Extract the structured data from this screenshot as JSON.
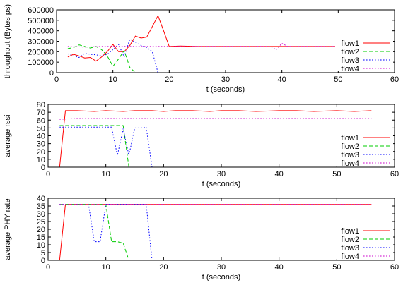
{
  "chart_data": [
    {
      "type": "line",
      "xlabel": "t (seconds)",
      "ylabel": "throughput (Bytes ps)",
      "xlim": [
        0,
        60
      ],
      "ylim": [
        0,
        600000
      ],
      "xticks": [
        0,
        10,
        20,
        30,
        40,
        50,
        60
      ],
      "yticks": [
        0,
        100000,
        200000,
        300000,
        400000,
        500000,
        600000
      ],
      "grid": false,
      "legend_position": "bottom-right",
      "series": [
        {
          "name": "flow1",
          "color": "#ff0000",
          "dash": "solid",
          "points": [
            [
              2,
              150000
            ],
            [
              3,
              175000
            ],
            [
              4,
              160000
            ],
            [
              5,
              140000
            ],
            [
              6,
              145000
            ],
            [
              7,
              110000
            ],
            [
              8,
              150000
            ],
            [
              9,
              200000
            ],
            [
              10,
              270000
            ],
            [
              11,
              200000
            ],
            [
              12,
              200000
            ],
            [
              13,
              260000
            ],
            [
              14,
              350000
            ],
            [
              15,
              330000
            ],
            [
              16,
              340000
            ],
            [
              17,
              440000
            ],
            [
              18,
              545000
            ],
            [
              19,
              400000
            ],
            [
              20,
              250000
            ],
            [
              22,
              255000
            ],
            [
              25,
              250000
            ],
            [
              30,
              250000
            ],
            [
              35,
              250000
            ],
            [
              40,
              250000
            ],
            [
              45,
              250000
            ],
            [
              50,
              250000
            ],
            [
              54,
              250000
            ],
            [
              55,
              255000
            ],
            [
              56,
              250000
            ]
          ]
        },
        {
          "name": "flow2",
          "color": "#00cc00",
          "dash": "dashed",
          "points": [
            [
              2,
              230000
            ],
            [
              3,
              240000
            ],
            [
              4,
              265000
            ],
            [
              5,
              250000
            ],
            [
              6,
              235000
            ],
            [
              7,
              250000
            ],
            [
              8,
              220000
            ],
            [
              9,
              160000
            ],
            [
              10,
              60000
            ],
            [
              11,
              130000
            ],
            [
              12,
              210000
            ],
            [
              13,
              50000
            ],
            [
              14,
              0
            ]
          ]
        },
        {
          "name": "flow3",
          "color": "#0000ff",
          "dash": "dotted",
          "points": [
            [
              2,
              180000
            ],
            [
              3,
              160000
            ],
            [
              4,
              145000
            ],
            [
              5,
              185000
            ],
            [
              6,
              175000
            ],
            [
              7,
              170000
            ],
            [
              8,
              160000
            ],
            [
              9,
              175000
            ],
            [
              10,
              220000
            ],
            [
              11,
              270000
            ],
            [
              12,
              150000
            ],
            [
              13,
              320000
            ],
            [
              14,
              290000
            ],
            [
              15,
              260000
            ],
            [
              16,
              240000
            ],
            [
              17,
              200000
            ],
            [
              18,
              0
            ]
          ]
        },
        {
          "name": "flow4",
          "color": "#cc00cc",
          "dash": "dotted",
          "points": [
            [
              2,
              250000
            ],
            [
              5,
              245000
            ],
            [
              8,
              250000
            ],
            [
              10,
              250000
            ],
            [
              12,
              250000
            ],
            [
              15,
              250000
            ],
            [
              20,
              250000
            ],
            [
              25,
              250000
            ],
            [
              30,
              250000
            ],
            [
              35,
              250000
            ],
            [
              38,
              250000
            ],
            [
              39,
              220000
            ],
            [
              40,
              280000
            ],
            [
              41,
              250000
            ],
            [
              45,
              250000
            ],
            [
              50,
              250000
            ],
            [
              53,
              250000
            ],
            [
              56,
              245000
            ]
          ]
        }
      ]
    },
    {
      "type": "line",
      "xlabel": "t (seconds)",
      "ylabel": "average rssi",
      "xlim": [
        0,
        60
      ],
      "ylim": [
        0,
        80
      ],
      "xticks": [
        0,
        10,
        20,
        30,
        40,
        50,
        60
      ],
      "yticks": [
        0,
        10,
        20,
        30,
        40,
        50,
        60,
        70,
        80
      ],
      "grid": false,
      "legend_position": "bottom-right",
      "series": [
        {
          "name": "flow1",
          "color": "#ff0000",
          "dash": "solid",
          "points": [
            [
              2,
              0
            ],
            [
              3,
              72
            ],
            [
              5,
              72
            ],
            [
              8,
              71
            ],
            [
              10,
              72
            ],
            [
              13,
              71
            ],
            [
              15,
              72
            ],
            [
              18,
              72
            ],
            [
              20,
              71
            ],
            [
              22,
              72
            ],
            [
              25,
              72
            ],
            [
              28,
              71
            ],
            [
              30,
              72
            ],
            [
              33,
              72
            ],
            [
              36,
              71
            ],
            [
              40,
              72
            ],
            [
              43,
              72
            ],
            [
              46,
              71
            ],
            [
              50,
              72
            ],
            [
              53,
              71
            ],
            [
              56,
              72
            ]
          ]
        },
        {
          "name": "flow2",
          "color": "#00cc00",
          "dash": "dashed",
          "points": [
            [
              2,
              53
            ],
            [
              5,
              53
            ],
            [
              8,
              53
            ],
            [
              10,
              53
            ],
            [
              12,
              53
            ],
            [
              13,
              53
            ],
            [
              14,
              0
            ]
          ]
        },
        {
          "name": "flow3",
          "color": "#0000ff",
          "dash": "dotted",
          "points": [
            [
              2,
              51
            ],
            [
              5,
              51
            ],
            [
              8,
              51
            ],
            [
              10,
              51
            ],
            [
              11,
              51
            ],
            [
              12,
              15
            ],
            [
              13,
              49
            ],
            [
              14,
              15
            ],
            [
              15,
              50
            ],
            [
              16,
              50
            ],
            [
              17,
              51
            ],
            [
              18,
              0
            ]
          ]
        },
        {
          "name": "flow4",
          "color": "#cc00cc",
          "dash": "dotted",
          "points": [
            [
              2,
              61
            ],
            [
              5,
              62
            ],
            [
              10,
              62
            ],
            [
              15,
              62
            ],
            [
              20,
              62
            ],
            [
              25,
              62
            ],
            [
              30,
              62
            ],
            [
              35,
              62
            ],
            [
              40,
              62
            ],
            [
              45,
              62
            ],
            [
              50,
              62
            ],
            [
              56,
              62
            ]
          ]
        }
      ]
    },
    {
      "type": "line",
      "xlabel": "t (seconds)",
      "ylabel": "average PHY rate",
      "xlim": [
        0,
        60
      ],
      "ylim": [
        0,
        40
      ],
      "xticks": [
        0,
        10,
        20,
        30,
        40,
        50,
        60
      ],
      "yticks": [
        0,
        5,
        10,
        15,
        20,
        25,
        30,
        35,
        40
      ],
      "grid": false,
      "legend_position": "bottom-right",
      "series": [
        {
          "name": "flow1",
          "color": "#ff0000",
          "dash": "solid",
          "points": [
            [
              2,
              0
            ],
            [
              3,
              36
            ],
            [
              10,
              36
            ],
            [
              20,
              36
            ],
            [
              30,
              36
            ],
            [
              40,
              36
            ],
            [
              50,
              36
            ],
            [
              56,
              36
            ]
          ]
        },
        {
          "name": "flow2",
          "color": "#00cc00",
          "dash": "dashed",
          "points": [
            [
              2,
              36
            ],
            [
              9,
              36
            ],
            [
              10,
              36
            ],
            [
              11,
              12
            ],
            [
              12,
              12
            ],
            [
              13,
              11
            ],
            [
              14,
              0
            ]
          ]
        },
        {
          "name": "flow3",
          "color": "#0000ff",
          "dash": "dotted",
          "points": [
            [
              2,
              36
            ],
            [
              7,
              36
            ],
            [
              8,
              12
            ],
            [
              9,
              12
            ],
            [
              10,
              36
            ],
            [
              15,
              36
            ],
            [
              17,
              36
            ],
            [
              18,
              0
            ]
          ]
        },
        {
          "name": "flow4",
          "color": "#cc00cc",
          "dash": "dotted",
          "points": [
            [
              2,
              36
            ],
            [
              10,
              36
            ],
            [
              20,
              36
            ],
            [
              30,
              36
            ],
            [
              40,
              36
            ],
            [
              50,
              36
            ],
            [
              56,
              36
            ]
          ]
        }
      ]
    }
  ]
}
